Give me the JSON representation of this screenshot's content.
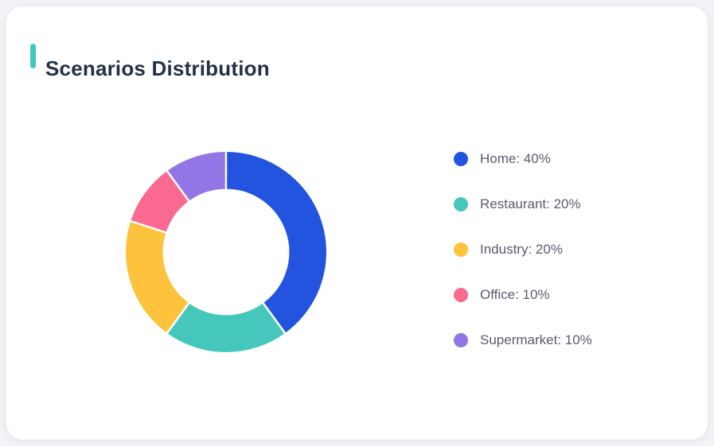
{
  "page": {
    "background_color": "#f2f3f7"
  },
  "card": {
    "title": "Scenarios Distribution",
    "accent_color": "#3fc7c1",
    "title_color": "#233046",
    "background_color": "#ffffff"
  },
  "chart_data": {
    "type": "pie",
    "subtype": "donut",
    "title": "Scenarios Distribution",
    "categories": [
      "Home",
      "Restaurant",
      "Industry",
      "Office",
      "Supermarket"
    ],
    "values": [
      40,
      20,
      20,
      10,
      10
    ],
    "unit": "%",
    "colors": [
      "#2254df",
      "#45c8bb",
      "#fec33d",
      "#fa6a90",
      "#9376e6"
    ],
    "start_angle_deg": 0,
    "direction": "clockwise",
    "inner_radius_ratio": 0.63,
    "legend_position": "right",
    "legend": [
      {
        "label": "Home: 40%",
        "color": "#2254df"
      },
      {
        "label": "Restaurant: 20%",
        "color": "#45c8bb"
      },
      {
        "label": "Industry: 20%",
        "color": "#fec33d"
      },
      {
        "label": "Office: 10%",
        "color": "#fa6a90"
      },
      {
        "label": "Supermarket: 10%",
        "color": "#9376e6"
      }
    ]
  }
}
